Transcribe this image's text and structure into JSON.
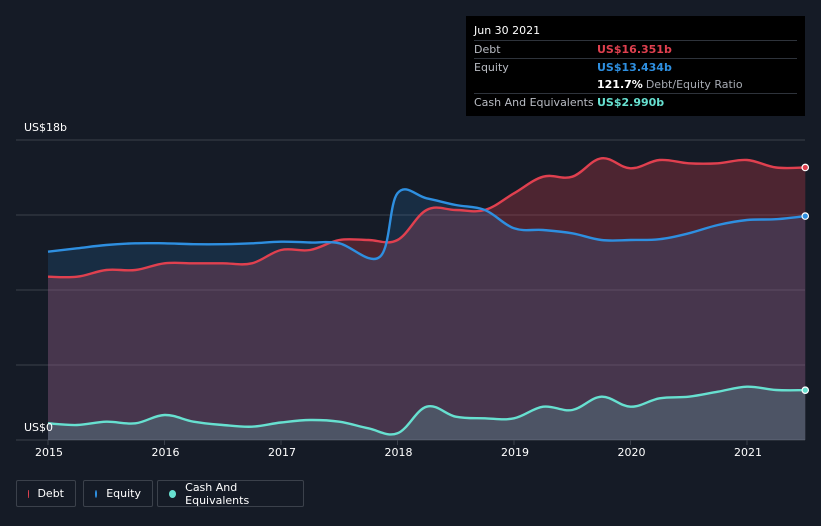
{
  "tooltip": {
    "date": "Jun 30 2021",
    "debt_label": "Debt",
    "debt_value": "US$16.351b",
    "equity_label": "Equity",
    "equity_value": "US$13.434b",
    "ratio_value": "121.7%",
    "ratio_label": "Debt/Equity Ratio",
    "cash_label": "Cash And Equivalents",
    "cash_value": "US$2.990b"
  },
  "colors": {
    "debt": "#e0404f",
    "equity": "#2e8fe0",
    "cash": "#67e0d0"
  },
  "legend": {
    "debt": "Debt",
    "equity": "Equity",
    "cash": "Cash And Equivalents"
  },
  "chart_data": {
    "type": "area",
    "y_top_label": "US$18b",
    "y_bottom_label": "US$0",
    "ylim": [
      0,
      18
    ],
    "xlim": [
      2014.97,
      2021.5
    ],
    "x_ticks": [
      "2015",
      "2016",
      "2017",
      "2018",
      "2019",
      "2020",
      "2021"
    ],
    "series": [
      {
        "name": "Debt",
        "points": [
          [
            2015.0,
            9.8
          ],
          [
            2015.25,
            9.8
          ],
          [
            2015.5,
            10.2
          ],
          [
            2015.75,
            10.2
          ],
          [
            2016.0,
            10.6
          ],
          [
            2016.25,
            10.6
          ],
          [
            2016.5,
            10.6
          ],
          [
            2016.75,
            10.6
          ],
          [
            2017.0,
            11.4
          ],
          [
            2017.25,
            11.4
          ],
          [
            2017.5,
            12.0
          ],
          [
            2017.75,
            12.0
          ],
          [
            2018.0,
            12.0
          ],
          [
            2018.25,
            13.8
          ],
          [
            2018.5,
            13.8
          ],
          [
            2018.75,
            13.8
          ],
          [
            2019.0,
            14.8
          ],
          [
            2019.25,
            15.8
          ],
          [
            2019.5,
            15.8
          ],
          [
            2019.75,
            16.9
          ],
          [
            2020.0,
            16.3
          ],
          [
            2020.25,
            16.8
          ],
          [
            2020.5,
            16.6
          ],
          [
            2020.75,
            16.6
          ],
          [
            2021.0,
            16.8
          ],
          [
            2021.25,
            16.35
          ],
          [
            2021.5,
            16.351
          ]
        ]
      },
      {
        "name": "Equity",
        "points": [
          [
            2015.0,
            11.3
          ],
          [
            2015.25,
            11.5
          ],
          [
            2015.5,
            11.7
          ],
          [
            2015.75,
            11.8
          ],
          [
            2016.0,
            11.8
          ],
          [
            2016.25,
            11.75
          ],
          [
            2016.5,
            11.75
          ],
          [
            2016.75,
            11.8
          ],
          [
            2017.0,
            11.9
          ],
          [
            2017.25,
            11.85
          ],
          [
            2017.5,
            11.8
          ],
          [
            2017.85,
            11.0
          ],
          [
            2018.0,
            14.8
          ],
          [
            2018.25,
            14.5
          ],
          [
            2018.5,
            14.1
          ],
          [
            2018.75,
            13.8
          ],
          [
            2019.0,
            12.7
          ],
          [
            2019.25,
            12.6
          ],
          [
            2019.5,
            12.4
          ],
          [
            2019.75,
            12.0
          ],
          [
            2020.0,
            12.0
          ],
          [
            2020.25,
            12.05
          ],
          [
            2020.5,
            12.4
          ],
          [
            2020.75,
            12.9
          ],
          [
            2021.0,
            13.2
          ],
          [
            2021.25,
            13.25
          ],
          [
            2021.5,
            13.434
          ]
        ]
      },
      {
        "name": "Cash And Equivalents",
        "points": [
          [
            2015.0,
            1.0
          ],
          [
            2015.25,
            0.9
          ],
          [
            2015.5,
            1.1
          ],
          [
            2015.75,
            1.0
          ],
          [
            2016.0,
            1.5
          ],
          [
            2016.25,
            1.1
          ],
          [
            2016.5,
            0.9
          ],
          [
            2016.75,
            0.8
          ],
          [
            2017.0,
            1.05
          ],
          [
            2017.25,
            1.2
          ],
          [
            2017.5,
            1.1
          ],
          [
            2017.75,
            0.7
          ],
          [
            2018.0,
            0.4
          ],
          [
            2018.25,
            2.0
          ],
          [
            2018.5,
            1.4
          ],
          [
            2018.75,
            1.3
          ],
          [
            2019.0,
            1.3
          ],
          [
            2019.25,
            2.0
          ],
          [
            2019.5,
            1.8
          ],
          [
            2019.75,
            2.6
          ],
          [
            2020.0,
            2.0
          ],
          [
            2020.25,
            2.5
          ],
          [
            2020.5,
            2.6
          ],
          [
            2020.75,
            2.9
          ],
          [
            2021.0,
            3.2
          ],
          [
            2021.25,
            3.0
          ],
          [
            2021.5,
            2.99
          ]
        ]
      }
    ]
  }
}
